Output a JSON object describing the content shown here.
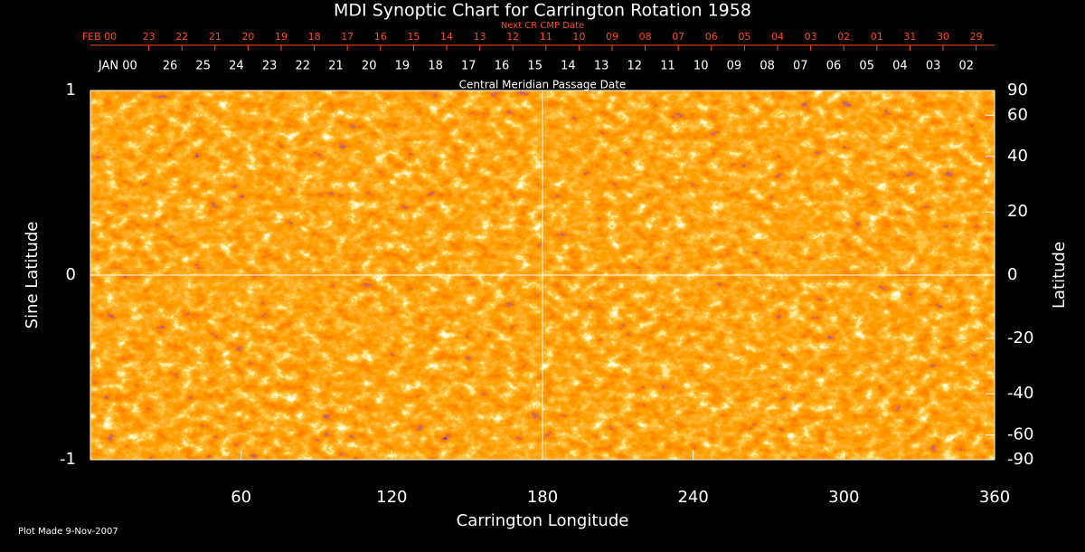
{
  "chart_data": {
    "type": "synoptic-map",
    "title": "MDI Synoptic Chart for Carrington Rotation 1958",
    "top_axes": [
      {
        "label": "Next CR CMP Date",
        "color": "#ff4a1c",
        "categories": [
          "FEB 00",
          "23",
          "22",
          "21",
          "20",
          "19",
          "18",
          "17",
          "16",
          "15",
          "14",
          "13",
          "12",
          "11",
          "10",
          "09",
          "08",
          "07",
          "06",
          "05",
          "04",
          "03",
          "02",
          "01",
          "31",
          "30",
          "29"
        ]
      },
      {
        "label": "Central Meridian Passage Date",
        "color": "#ffffff",
        "categories": [
          "JAN 00",
          "26",
          "25",
          "24",
          "23",
          "22",
          "21",
          "20",
          "19",
          "18",
          "17",
          "16",
          "15",
          "14",
          "13",
          "12",
          "11",
          "10",
          "09",
          "08",
          "07",
          "06",
          "05",
          "04",
          "03",
          "02"
        ]
      }
    ],
    "xlabel": "Carrington Longitude",
    "ylabel": "Sine Latitude",
    "y2label": "Latitude",
    "xlim": [
      0,
      360
    ],
    "xticks": [
      60,
      120,
      180,
      240,
      300,
      360
    ],
    "ylim": [
      -1,
      1
    ],
    "yticks": [
      -1,
      0,
      1
    ],
    "y2lim": [
      -90,
      90
    ],
    "y2ticks": [
      90,
      60,
      40,
      20,
      0,
      -20,
      -40,
      -60,
      -90
    ],
    "gridlines": {
      "x": [
        180
      ],
      "y": [
        0
      ]
    },
    "footnote": "Plot Made  9-Nov-2007"
  }
}
